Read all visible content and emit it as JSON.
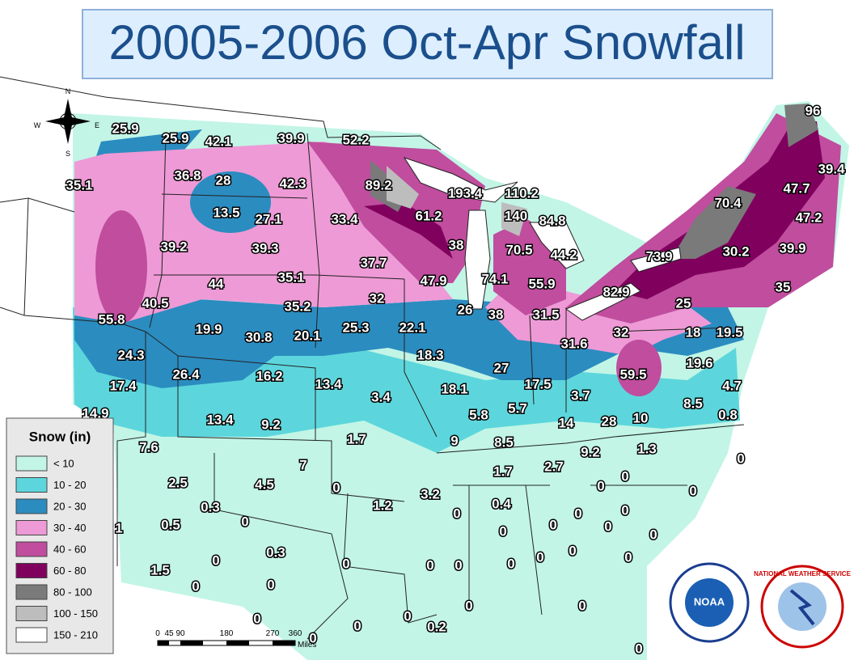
{
  "title": "20005-2006 Oct-Apr Snowfall",
  "compass": {
    "n": "N",
    "s": "S",
    "e": "E",
    "w": "W"
  },
  "legend": {
    "title": "Snow (in)",
    "items": [
      {
        "label": "< 10",
        "color": "#c2f5e6"
      },
      {
        "label": "10 - 20",
        "color": "#5cd6dc"
      },
      {
        "label": "20 - 30",
        "color": "#2b8cc0"
      },
      {
        "label": "30 - 40",
        "color": "#ee9ad6"
      },
      {
        "label": "40 - 60",
        "color": "#c04d9e"
      },
      {
        "label": "60 - 80",
        "color": "#80005e"
      },
      {
        "label": "80 - 100",
        "color": "#7a7a7a"
      },
      {
        "label": "100 - 150",
        "color": "#bdbdbd"
      },
      {
        "label": "150 - 210",
        "color": "#ffffff"
      }
    ]
  },
  "stations": [
    "25.9",
    "25.9",
    "42.1",
    "39.9",
    "52.2",
    "96",
    "35.1",
    "36.8",
    "28",
    "42.3",
    "89.2",
    "193.4",
    "110.2",
    "39.4",
    "47.7",
    "70.4",
    "13.5",
    "27.1",
    "33.4",
    "61.2",
    "140",
    "84.8",
    "47.2",
    "39.2",
    "39.3",
    "38",
    "70.5",
    "44.2",
    "73.9",
    "30.2",
    "39.9",
    "37.7",
    "35.1",
    "47.9",
    "74.1",
    "55.9",
    "44",
    "82.9",
    "35",
    "40.5",
    "35.2",
    "32",
    "26",
    "38",
    "31.5",
    "25",
    "55.8",
    "19.9",
    "30.8",
    "20.1",
    "25.3",
    "22.1",
    "32",
    "18",
    "19.5",
    "24.3",
    "18.3",
    "31.6",
    "27",
    "19.6",
    "26.4",
    "16.2",
    "59.5",
    "17.4",
    "13.4",
    "18.1",
    "17.5",
    "4.7",
    "3.4",
    "3.7",
    "8.5",
    "14.9",
    "5.8",
    "5.7",
    "0.8",
    "13.4",
    "9.2",
    "14",
    "28",
    "10",
    "1.7",
    "9",
    "8.5",
    "9.2",
    "1.3",
    "0",
    "7.6",
    "7",
    "1.7",
    "2.7",
    "2.5",
    "4.5",
    "0",
    "3.2",
    "0",
    "0",
    "0",
    "0.3",
    "0.4",
    "1",
    "0.5",
    "0",
    "1.2",
    "0",
    "0",
    "0",
    "0",
    "0",
    "0",
    "0",
    "0.3",
    "0",
    "0",
    "0",
    "0",
    "1.5",
    "0",
    "0",
    "0",
    "0",
    "0",
    "0",
    "0",
    "0",
    "0",
    "0",
    "0",
    "0.2",
    "0",
    "0"
  ],
  "scale": {
    "ticks": [
      "0",
      "45",
      "90",
      "180",
      "270",
      "360"
    ],
    "unit": "Miles"
  },
  "logos": {
    "noaa": "NOAA",
    "nws": "NATIONAL WEATHER SERVICE"
  }
}
